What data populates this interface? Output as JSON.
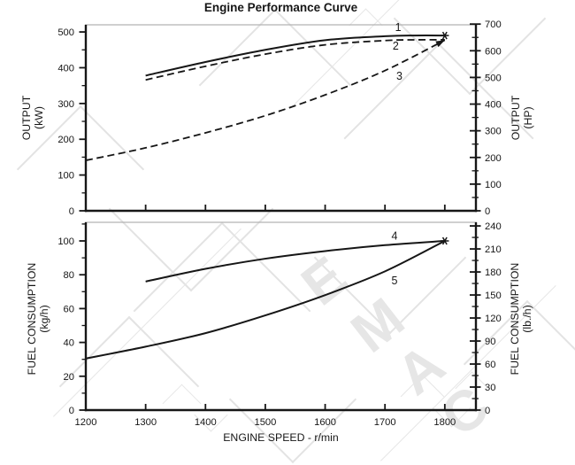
{
  "title": "Engine Performance Curve",
  "watermark": {
    "letters": [
      "E",
      "M",
      "A",
      "C"
    ]
  },
  "chart_data": [
    {
      "type": "line",
      "panel": "output",
      "x": {
        "label": "",
        "range": [
          1200,
          1852
        ],
        "ticks": [
          1300,
          1400,
          1500,
          1600,
          1700,
          1800
        ],
        "show_tick_labels": false
      },
      "y_left": {
        "label": "OUTPUT\n(kW)",
        "range": [
          0,
          520
        ],
        "ticks": [
          0,
          100,
          200,
          300,
          400,
          500
        ],
        "minor_step": 50
      },
      "y_right": {
        "label": "OUTPUT\n(HP)",
        "range": [
          0,
          697.3
        ],
        "ticks": [
          0,
          100,
          200,
          300,
          400,
          500,
          600,
          700
        ],
        "minor_step": 50
      },
      "series": [
        {
          "name": "1",
          "style": "solid",
          "marker_end": "asterisk",
          "label_at": [
            1722,
            512
          ],
          "points": [
            [
              1300,
              378
            ],
            [
              1400,
              416
            ],
            [
              1500,
              450
            ],
            [
              1600,
              477
            ],
            [
              1700,
              488
            ],
            [
              1750,
              490
            ],
            [
              1800,
              490
            ]
          ]
        },
        {
          "name": "2",
          "style": "dashed",
          "label_at": [
            1718,
            461
          ],
          "points": [
            [
              1300,
              366
            ],
            [
              1400,
              404
            ],
            [
              1500,
              438
            ],
            [
              1600,
              464
            ],
            [
              1700,
              476
            ],
            [
              1750,
              478
            ],
            [
              1800,
              478
            ]
          ]
        },
        {
          "name": "3",
          "style": "dashed",
          "arrow_end": true,
          "label_at": [
            1724,
            377
          ],
          "points": [
            [
              1200,
              141
            ],
            [
              1300,
              176
            ],
            [
              1400,
              218
            ],
            [
              1500,
              266
            ],
            [
              1600,
              324
            ],
            [
              1700,
              392
            ],
            [
              1800,
              477
            ]
          ]
        }
      ]
    },
    {
      "type": "line",
      "panel": "fuel",
      "x": {
        "label": "ENGINE SPEED - r/min",
        "range": [
          1200,
          1852
        ],
        "ticks": [
          1200,
          1300,
          1400,
          1500,
          1600,
          1700,
          1800
        ],
        "show_tick_labels": true
      },
      "y_left": {
        "label": "FUEL CONSUMPTION\n(kg/h)",
        "range": [
          0,
          111
        ],
        "ticks": [
          0,
          20,
          40,
          60,
          80,
          100
        ],
        "minor_step": 10
      },
      "y_right": {
        "label": "FUEL CONSUMPTION\n(lb./h)",
        "range": [
          0,
          244.7
        ],
        "ticks": [
          0,
          30,
          60,
          90,
          120,
          150,
          180,
          210,
          240
        ],
        "minor_step": 15
      },
      "series": [
        {
          "name": "4",
          "style": "solid",
          "marker_end": "asterisk",
          "label_at": [
            1716,
            103
          ],
          "points": [
            [
              1300,
              76
            ],
            [
              1400,
              83.5
            ],
            [
              1500,
              89.5
            ],
            [
              1600,
              94
            ],
            [
              1700,
              97.5
            ],
            [
              1800,
              100
            ]
          ]
        },
        {
          "name": "5",
          "style": "solid",
          "label_at": [
            1716,
            76.5
          ],
          "points": [
            [
              1200,
              30.5
            ],
            [
              1300,
              37.5
            ],
            [
              1400,
              45.5
            ],
            [
              1500,
              56
            ],
            [
              1600,
              68
            ],
            [
              1700,
              82
            ],
            [
              1800,
              100
            ]
          ]
        }
      ]
    }
  ]
}
